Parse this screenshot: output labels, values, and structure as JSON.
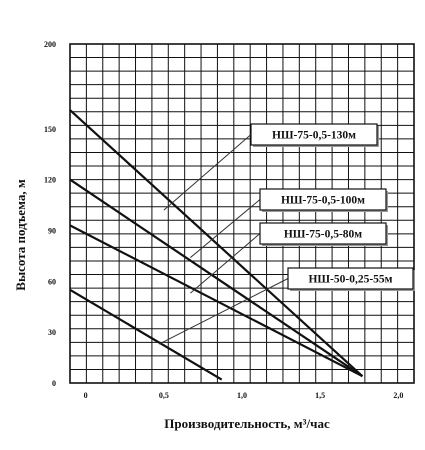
{
  "chart_data": {
    "type": "line",
    "xlabel": "Производительность, м³/час",
    "ylabel": "Высота подъема, м",
    "xlim": [
      -0.1,
      2.1
    ],
    "ylim": [
      0,
      200
    ],
    "x_ticks": [
      {
        "value": 0,
        "label": "0"
      },
      {
        "value": 0.5,
        "label": "0,5"
      },
      {
        "value": 1.0,
        "label": "1,0"
      },
      {
        "value": 1.5,
        "label": "1,5"
      },
      {
        "value": 2.0,
        "label": "2,0"
      }
    ],
    "y_ticks": [
      {
        "value": 0,
        "label": "0"
      },
      {
        "value": 30,
        "label": "30"
      },
      {
        "value": 60,
        "label": "60"
      },
      {
        "value": 90,
        "label": "90"
      },
      {
        "value": 120,
        "label": "120"
      },
      {
        "value": 150,
        "label": "150"
      },
      {
        "value": 200,
        "label": "200"
      }
    ],
    "grid": true,
    "series": [
      {
        "name": "НШ-75-0,5-130м",
        "points": [
          [
            -0.1,
            161
          ],
          [
            1.77,
            4
          ]
        ],
        "label_at": [
          0.5,
          102
        ]
      },
      {
        "name": "НШ-75-0,5-100м",
        "points": [
          [
            -0.1,
            120
          ],
          [
            1.77,
            4
          ]
        ],
        "label_at": [
          0.67,
          74
        ]
      },
      {
        "name": "НШ-75-0,5-80м",
        "points": [
          [
            -0.1,
            93
          ],
          [
            1.77,
            4
          ]
        ],
        "label_at": [
          0.67,
          53
        ]
      },
      {
        "name": "НШ-50-0,25-55м",
        "points": [
          [
            -0.1,
            55
          ],
          [
            0.87,
            2
          ]
        ],
        "label_at": [
          0.47,
          23
        ]
      }
    ],
    "labels": [
      {
        "series": 0,
        "text": "НШ-75-0,5-130м",
        "box": "right-top"
      },
      {
        "series": 1,
        "text": "НШ-75-0,5-100м",
        "box": "right"
      },
      {
        "series": 2,
        "text": "НШ-75-0,5-80м",
        "box": "right"
      },
      {
        "series": 3,
        "text": "НШ-50-0,25-55м",
        "box": "right"
      }
    ]
  }
}
